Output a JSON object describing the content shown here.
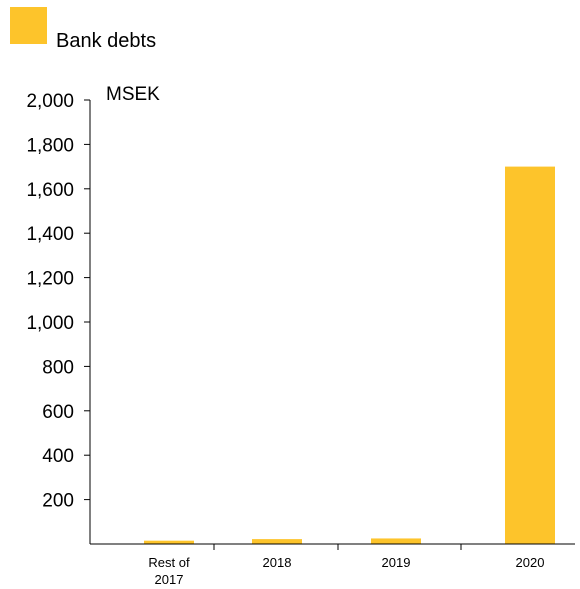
{
  "chart_data": {
    "type": "bar",
    "categories": [
      [
        "Rest of",
        "2017"
      ],
      [
        "2018"
      ],
      [
        "2019"
      ],
      [
        "2020"
      ]
    ],
    "series": [
      {
        "name": "Bank debts",
        "color": "#fdc42b",
        "values": [
          15,
          22,
          25,
          1700
        ]
      }
    ],
    "ylabel": "MSEK",
    "ylim": [
      0,
      2000
    ],
    "yticks": [
      200,
      400,
      600,
      800,
      1000,
      1200,
      1400,
      1600,
      1800,
      2000
    ],
    "ytick_labels": [
      "200",
      "400",
      "600",
      "800",
      "1,000",
      "1,200",
      "1,400",
      "1,600",
      "1,800",
      "2,000"
    ],
    "grid": false,
    "legend_position": "top-left"
  }
}
